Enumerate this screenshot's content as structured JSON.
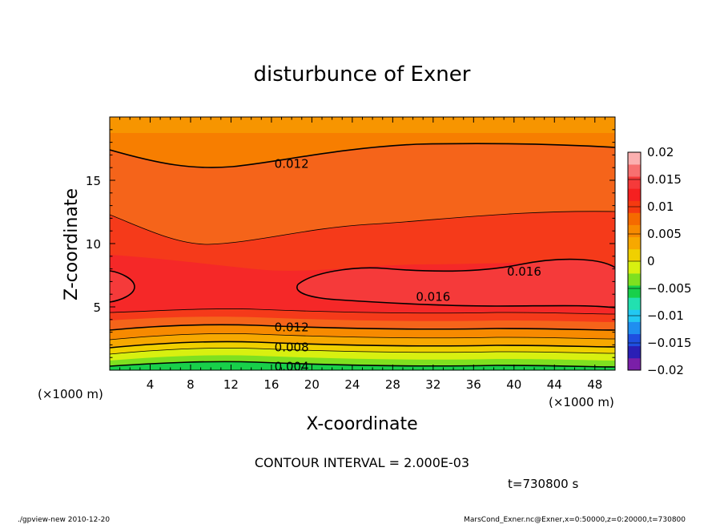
{
  "chart_data": {
    "type": "contour",
    "title": "disturbunce of Exner",
    "xlabel": "X-coordinate",
    "ylabel": "Z-coordinate",
    "x_unit_label_left": "(×1000 m)",
    "x_unit_label_right": "(×1000 m)",
    "xlim": [
      0,
      50
    ],
    "ylim": [
      0,
      20
    ],
    "x_ticks": [
      "4",
      "8",
      "12",
      "16",
      "20",
      "24",
      "28",
      "32",
      "36",
      "40",
      "44",
      "48"
    ],
    "y_ticks": [
      "5",
      "10",
      "15"
    ],
    "contour_interval_text": "CONTOUR INTERVAL = 2.000E-03",
    "time_text": "t=730800  s",
    "footer_left": "./gpview-new   2010-12-20",
    "footer_right": "MarsCond_Exner.nc@Exner,x=0:50000,z=0:20000,t=730800",
    "contour_labels": [
      {
        "text": "0.012",
        "x": 18,
        "z": 16.3
      },
      {
        "text": "0.016",
        "x": 41,
        "z": 7.8
      },
      {
        "text": "0.016",
        "x": 32,
        "z": 5.8
      },
      {
        "text": "0.012",
        "x": 18,
        "z": 3.4
      },
      {
        "text": "0.008",
        "x": 18,
        "z": 1.8
      },
      {
        "text": "0.004",
        "x": 18,
        "z": 0.3
      }
    ],
    "colorbar": {
      "labels": [
        "0.02",
        "0.015",
        "0.01",
        "0.005",
        "0",
        "−0.005",
        "−0.01",
        "−0.015",
        "−0.02"
      ],
      "range": [
        -0.02,
        0.02
      ],
      "colors": [
        "#7a1fa8",
        "#2a1fb5",
        "#1f4fe0",
        "#1f8ef0",
        "#22c8f2",
        "#22e0b0",
        "#18d04a",
        "#7ee020",
        "#d8f010",
        "#f0d000",
        "#f7a800",
        "#f78a00",
        "#f56a00",
        "#f53a10",
        "#f52020",
        "#f53a3a",
        "#f77070",
        "#fbb0b0"
      ]
    }
  }
}
